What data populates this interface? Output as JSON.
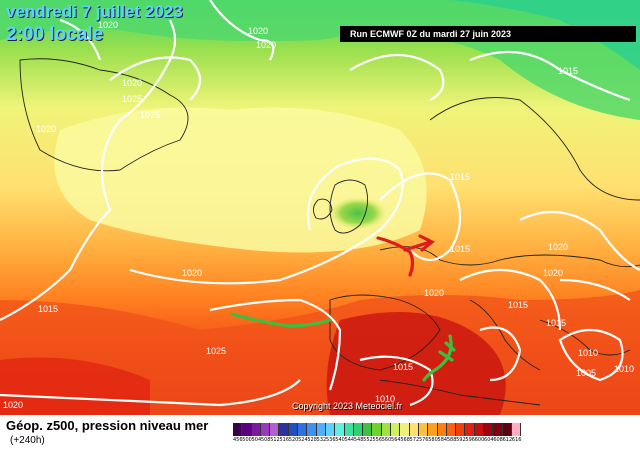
{
  "header": {
    "date": "vendredi 7 juillet 2023",
    "hour": "2:00 locale",
    "run": "Run ECMWF 0Z du mardi 27 juin 2023"
  },
  "footer": {
    "title": "Géop. z500, pression niveau mer",
    "subtitle": "(+240h)",
    "copyright": "Copyright 2023 Meteociel.fr"
  },
  "isobars": [
    "1020",
    "1020",
    "1020",
    "1025",
    "1020",
    "1025",
    "1020",
    "1020",
    "1015",
    "1015",
    "1020",
    "1015",
    "1020",
    "1015",
    "1020",
    "1015",
    "1015",
    "1025",
    "1015",
    "1010",
    "1010",
    "1005",
    "1010",
    "1020"
  ],
  "colorbar": {
    "labels": [
      "456",
      "500",
      "504",
      "508",
      "512",
      "516",
      "520",
      "524",
      "528",
      "532",
      "536",
      "540",
      "544",
      "548",
      "552",
      "556",
      "560",
      "564",
      "568",
      "572",
      "576",
      "580",
      "584",
      "588",
      "592",
      "596",
      "600",
      "604",
      "608",
      "612",
      "616"
    ],
    "colors": [
      "#3a004a",
      "#5a0080",
      "#7a1aa0",
      "#9a3ac0",
      "#b060d0",
      "#3030a0",
      "#2050c0",
      "#3070e0",
      "#4090f0",
      "#50b0ff",
      "#60d0ff",
      "#60f0e0",
      "#40e0a0",
      "#30d070",
      "#40c040",
      "#70d030",
      "#a0e040",
      "#d0f060",
      "#f0f080",
      "#ffe070",
      "#ffc040",
      "#ffa020",
      "#ff8010",
      "#ff6010",
      "#f04010",
      "#e02010",
      "#c01010",
      "#a00010",
      "#800010",
      "#600010",
      "#ffb0c0"
    ]
  },
  "colors": {
    "accent_title": "#5cd3ff",
    "red_arrow": "#e01a1a",
    "green_marker": "#3ac040"
  }
}
